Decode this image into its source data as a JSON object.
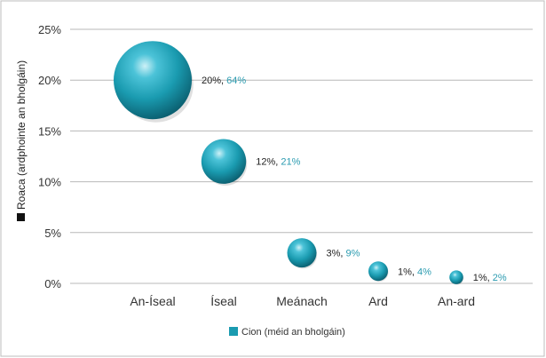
{
  "chart_data": {
    "type": "bubble",
    "title": "",
    "xlabel": "",
    "ylabel": "Roaca (ardphointe an bholgáin)",
    "categories": [
      "An-Íseal",
      "Íseal",
      "Meánach",
      "Ard",
      "An-ard"
    ],
    "ylim": [
      0,
      25
    ],
    "y_ticks": [
      "0%",
      "5%",
      "10%",
      "15%",
      "20%",
      "25%"
    ],
    "grid": true,
    "legend_position": "bottom-center",
    "series": [
      {
        "name": "Cion (méid an bholgáin)",
        "color": "#1a9bb0",
        "points": [
          {
            "category": "An-Íseal",
            "y": 20,
            "size": 64,
            "y_label": "20%,",
            "size_label": "64%"
          },
          {
            "category": "Íseal",
            "y": 12,
            "size": 21,
            "y_label": "12%,",
            "size_label": "21%"
          },
          {
            "category": "Meánach",
            "y": 3,
            "size": 9,
            "y_label": "3%,",
            "size_label": "9%"
          },
          {
            "category": "Ard",
            "y": 1.2,
            "size": 4,
            "y_label": "1%,",
            "size_label": "4%"
          },
          {
            "category": "An-ard",
            "y": 0.6,
            "size": 2,
            "y_label": "1%,",
            "size_label": "2%"
          }
        ]
      }
    ],
    "colors": {
      "bubble": "#1a9bb0",
      "size_label": "#2a9bb0",
      "y_label": "#222222",
      "grid": "#b8b8b8",
      "ylabel_marker": "#111111"
    }
  }
}
